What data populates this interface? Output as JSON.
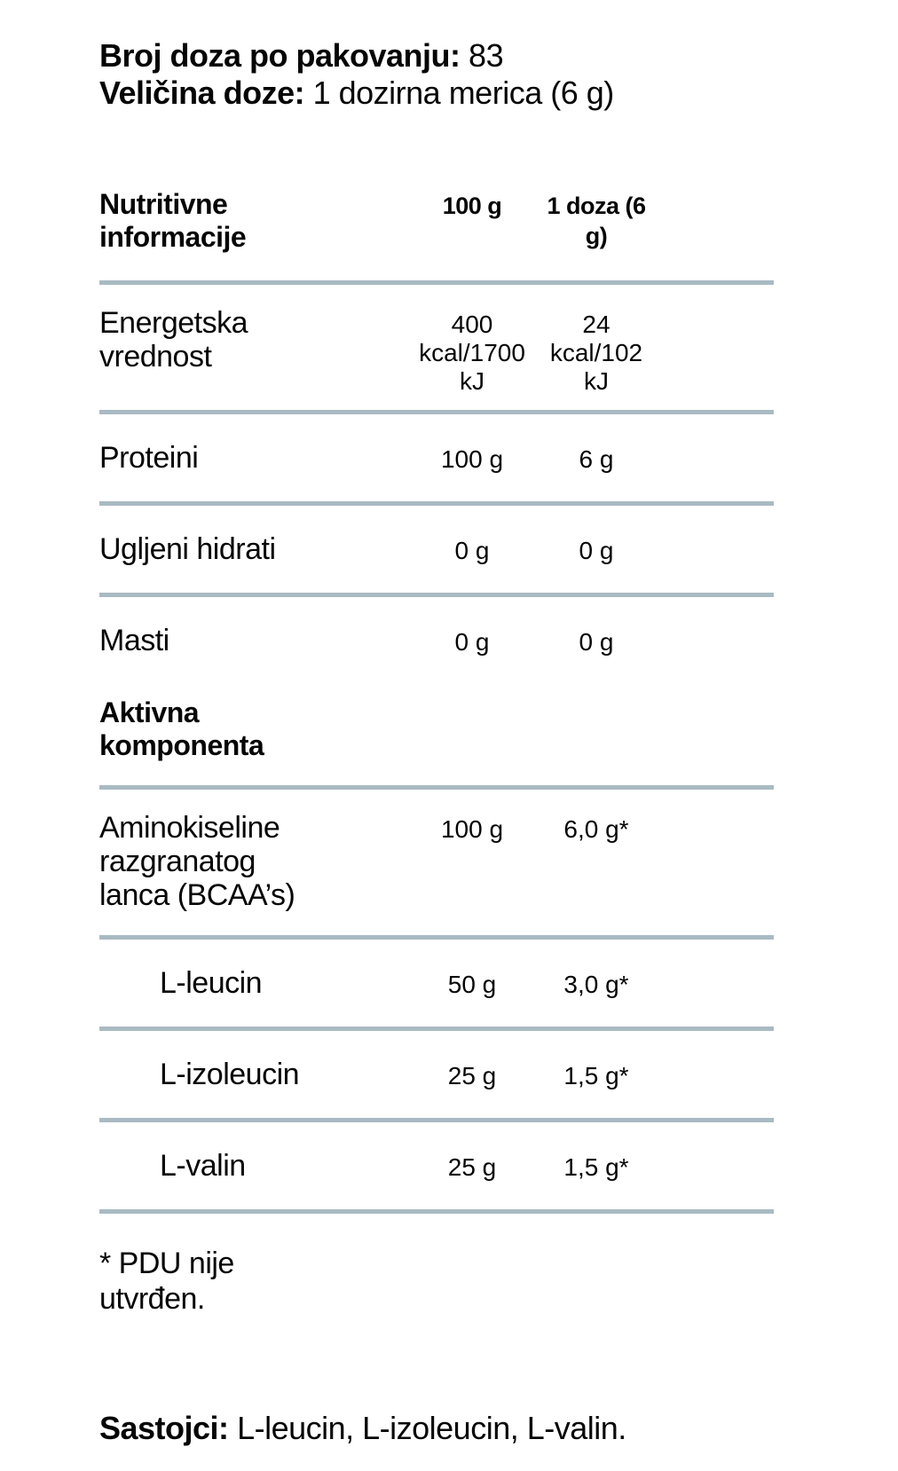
{
  "info": {
    "lines": [
      {
        "label": "Broj doza po pakovanju:",
        "value": "83"
      },
      {
        "label": "Veličina doze:",
        "value": "1 dozirna merica (6 g)"
      }
    ]
  },
  "table": {
    "header": {
      "col1": "Nutritivne informacije",
      "col2": "100 g",
      "col3": "1 doza (6 g)"
    },
    "rows": [
      {
        "name": "Energetska vrednost",
        "per_100g": "400 kcal/1700 kJ",
        "per_dose": "24 kcal/102 kJ"
      },
      {
        "name": "Proteini",
        "per_100g": "100 g",
        "per_dose": "6 g"
      },
      {
        "name": "Ugljeni hidrati",
        "per_100g": "0 g",
        "per_dose": "0 g"
      },
      {
        "name": "Masti",
        "per_100g": "0 g",
        "per_dose": "0 g"
      }
    ],
    "section_header": "Aktivna komponenta",
    "active_rows": [
      {
        "name": "Aminokiseline razgranatog lanca (BCAA’s)",
        "per_100g": "100 g",
        "per_dose": "6,0 g*"
      },
      {
        "name": "L-leucin",
        "per_100g": "50 g",
        "per_dose": "3,0 g*"
      },
      {
        "name": "L-izoleucin",
        "per_100g": "25 g",
        "per_dose": "1,5 g*"
      },
      {
        "name": "L-valin",
        "per_100g": "25 g",
        "per_dose": "1,5 g*"
      }
    ]
  },
  "footnote": "* PDU nije utvrđen.",
  "ingredients": {
    "label": "Sastojci:",
    "value": "L-leucin, L-izoleucin, L-valin."
  },
  "colors": {
    "divider": "#a9bac2",
    "text": "#050505",
    "background": "#ffffff"
  }
}
